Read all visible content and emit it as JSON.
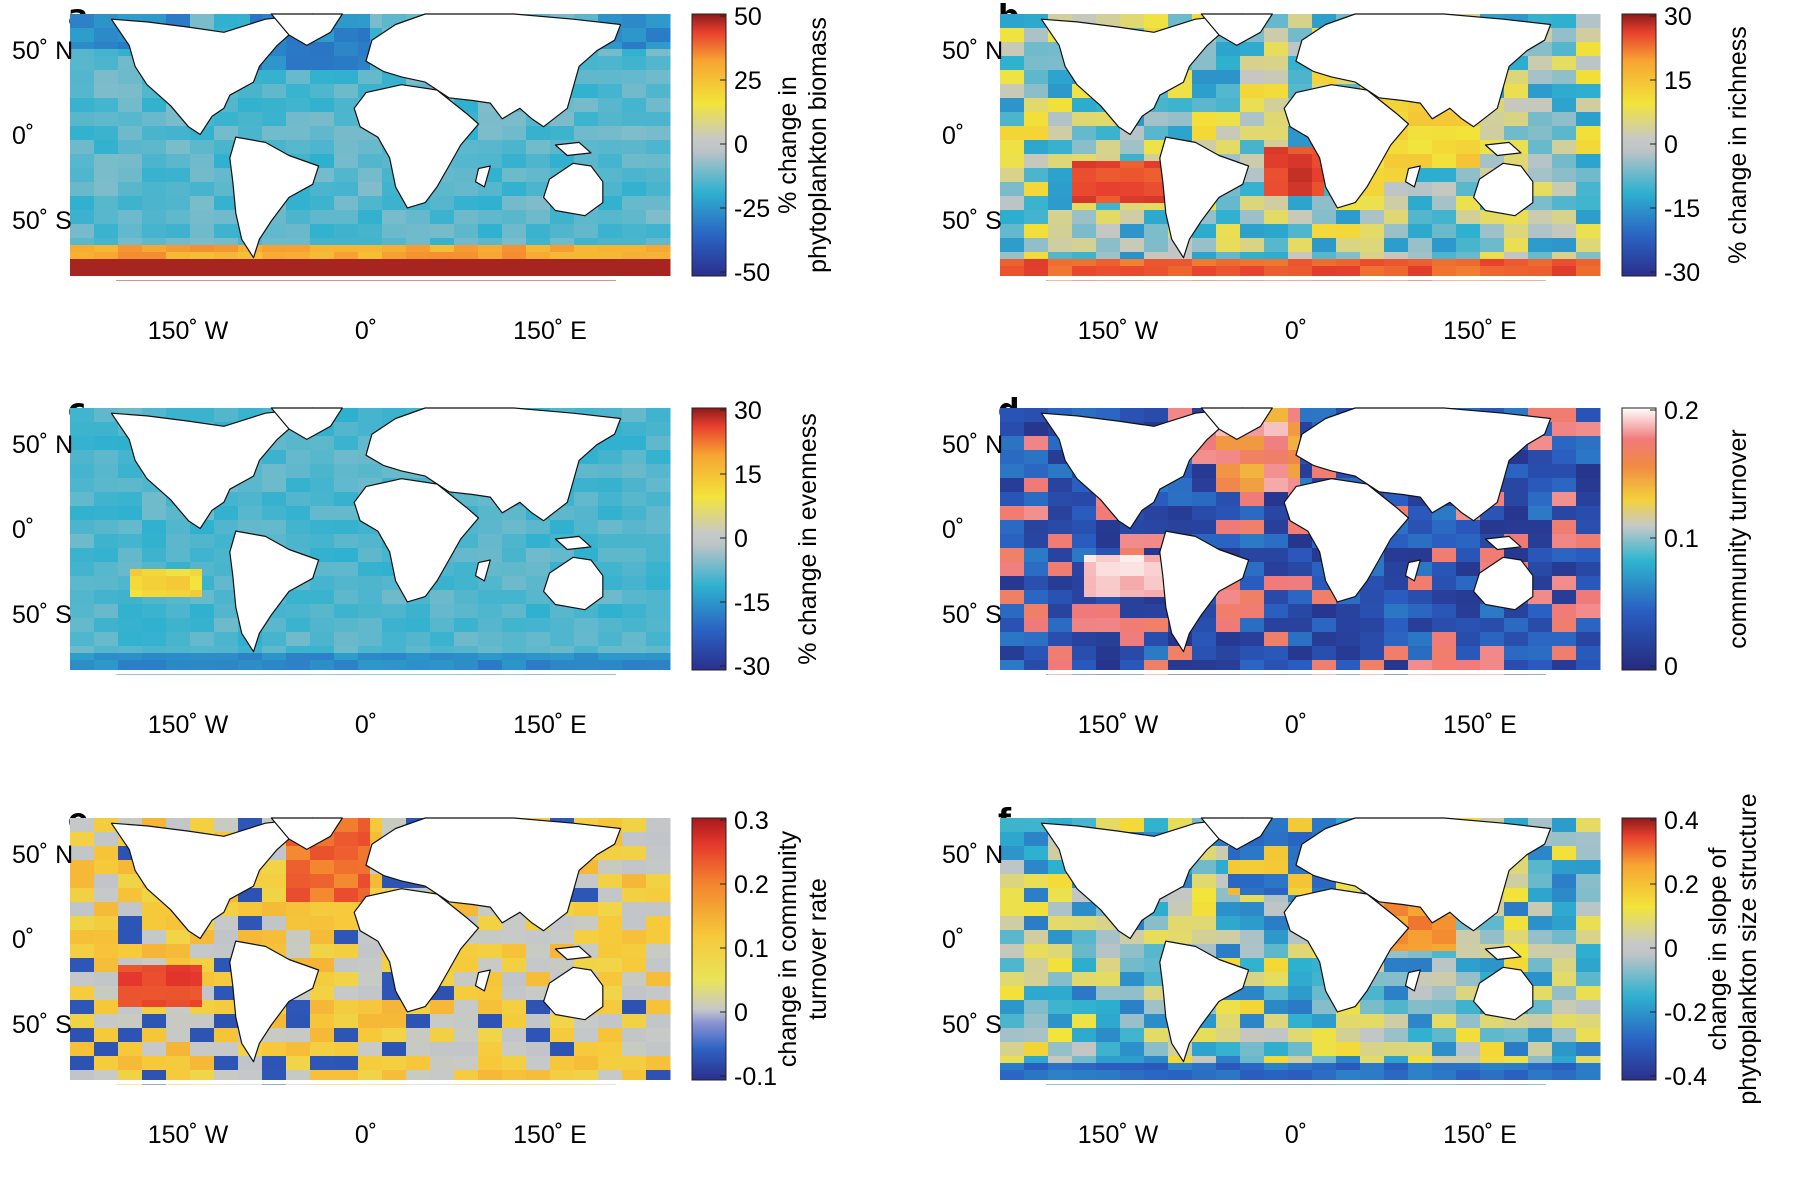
{
  "figure": {
    "panels": [
      {
        "id": "a",
        "label": "a",
        "colorbar": {
          "ticks": [
            "50",
            "25",
            "0",
            "-25",
            "-50"
          ],
          "label_lines": [
            "% change in",
            "phytoplankton biomass"
          ],
          "cmap": "div"
        }
      },
      {
        "id": "b",
        "label": "b",
        "colorbar": {
          "ticks": [
            "30",
            "15",
            "0",
            "-15",
            "-30"
          ],
          "label_lines": [
            "% change in richness"
          ],
          "cmap": "div"
        }
      },
      {
        "id": "c",
        "label": "c",
        "colorbar": {
          "ticks": [
            "30",
            "15",
            "0",
            "-15",
            "-30"
          ],
          "label_lines": [
            "% change in evenness"
          ],
          "cmap": "div"
        }
      },
      {
        "id": "d",
        "label": "d",
        "colorbar": {
          "ticks": [
            "0.2",
            "0.1",
            "0"
          ],
          "label_lines": [
            "community turnover"
          ],
          "cmap": "seq"
        }
      },
      {
        "id": "e",
        "label": "e",
        "colorbar": {
          "ticks": [
            "0.3",
            "0.2",
            "0.1",
            "0",
            "-0.1"
          ],
          "label_lines": [
            "change in community",
            "turnover rate"
          ],
          "cmap": "e"
        }
      },
      {
        "id": "f",
        "label": "f",
        "colorbar": {
          "ticks": [
            "0.4",
            "0.2",
            "0",
            "-0.2",
            "-0.4"
          ],
          "label_lines": [
            "change in slope of",
            "phytoplankton size structure"
          ],
          "cmap": "div"
        }
      }
    ],
    "lat_ticks": [
      "50˚ N",
      "0˚",
      "50˚ S"
    ],
    "lon_ticks": [
      "150˚ W",
      "0˚",
      "150˚ E"
    ]
  }
}
